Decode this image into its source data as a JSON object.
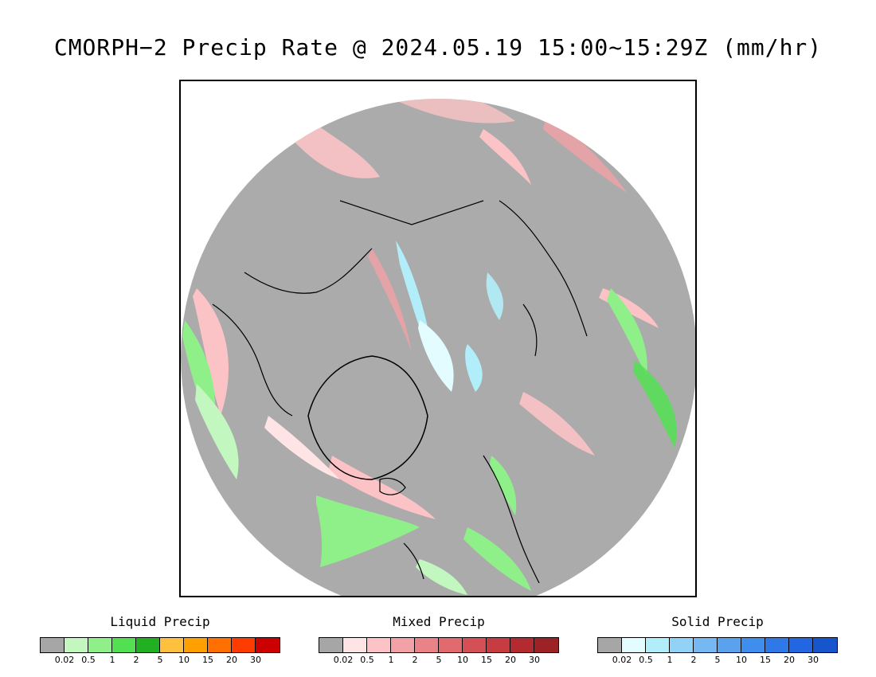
{
  "title": "CMORPH−2 Precip Rate @ 2024.05.19 15:00~15:29Z (mm/hr)",
  "map": {
    "projection": "north polar stereographic",
    "background_color": "#ababab",
    "coastline_color": "#000000"
  },
  "legends": [
    {
      "id": "liquid",
      "title": "Liquid Precip",
      "colors": [
        "#a6a6a6",
        "#c3f7c0",
        "#8ff08a",
        "#52e052",
        "#21b021",
        "#ffc040",
        "#ffa000",
        "#ff7000",
        "#ff3c00",
        "#cc0000"
      ],
      "ticks": [
        "0.02",
        "0.5",
        "1",
        "2",
        "5",
        "10",
        "15",
        "20",
        "30"
      ]
    },
    {
      "id": "mixed",
      "title": "Mixed Precip",
      "colors": [
        "#a6a6a6",
        "#ffe4e6",
        "#fbc3c6",
        "#f2a2a6",
        "#ea8387",
        "#e06a6e",
        "#d45055",
        "#c63c41",
        "#b32a30",
        "#9c2226"
      ],
      "ticks": [
        "0.02",
        "0.5",
        "1",
        "2",
        "5",
        "10",
        "15",
        "20",
        "30"
      ]
    },
    {
      "id": "solid",
      "title": "Solid Precip",
      "colors": [
        "#a6a6a6",
        "#e2fcff",
        "#b2eefa",
        "#93d2f7",
        "#76b9f2",
        "#5aa2ee",
        "#3f8ded",
        "#2f78e8",
        "#2266e2",
        "#1755cc"
      ],
      "ticks": [
        "0.02",
        "0.5",
        "1",
        "2",
        "5",
        "10",
        "15",
        "20",
        "30"
      ]
    }
  ]
}
